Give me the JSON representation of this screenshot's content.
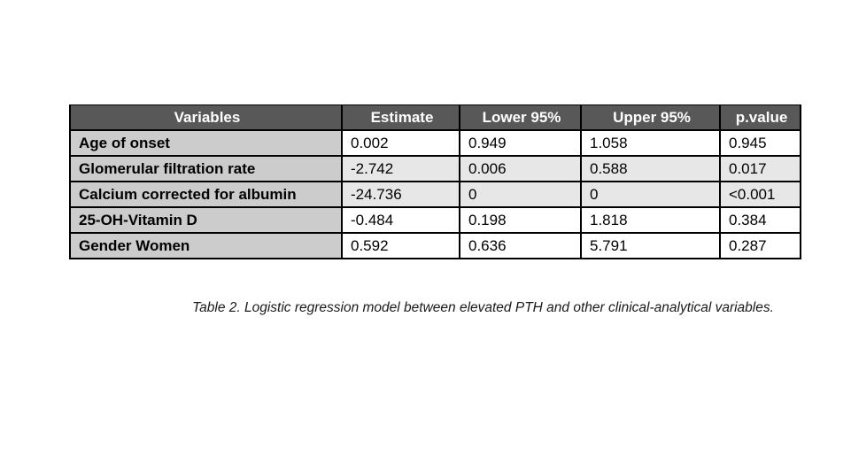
{
  "table": {
    "columns": [
      "Variables",
      "Estimate",
      "Lower 95%",
      "Upper 95%",
      "p.value"
    ],
    "rows": [
      [
        "Age of onset",
        "0.002",
        "0.949",
        "1.058",
        "0.945"
      ],
      [
        "Glomerular filtration rate",
        "-2.742",
        "0.006",
        "0.588",
        "0.017"
      ],
      [
        "Calcium corrected for albumin",
        "-24.736",
        "0",
        "0",
        "<0.001"
      ],
      [
        "25-OH-Vitamin D",
        "-0.484",
        "0.198",
        "1.818",
        "0.384"
      ],
      [
        "Gender Women",
        "0.592",
        "0.636",
        "5.791",
        "0.287"
      ]
    ]
  },
  "caption": "Table 2. Logistic regression model between elevated PTH and other clinical-analytical variables.",
  "colors": {
    "header_bg": "#585858",
    "header_text": "#ffffff",
    "variable_column_bg": "#cccccc",
    "shaded_row_bg": "#e7e7e7",
    "plain_row_bg": "#ffffff",
    "border": "#000000",
    "page_bg": "#ffffff"
  },
  "chart_data": {
    "type": "table",
    "title": "Table 2. Logistic regression model between elevated PTH and other clinical-analytical variables.",
    "columns": [
      "Variables",
      "Estimate",
      "Lower 95%",
      "Upper 95%",
      "p.value"
    ],
    "rows": [
      {
        "variable": "Age of onset",
        "estimate": 0.002,
        "lower_95": 0.949,
        "upper_95": 1.058,
        "p_value": "0.945"
      },
      {
        "variable": "Glomerular filtration rate",
        "estimate": -2.742,
        "lower_95": 0.006,
        "upper_95": 0.588,
        "p_value": "0.017"
      },
      {
        "variable": "Calcium corrected for albumin",
        "estimate": -24.736,
        "lower_95": 0,
        "upper_95": 0,
        "p_value": "<0.001"
      },
      {
        "variable": "25-OH-Vitamin D",
        "estimate": -0.484,
        "lower_95": 0.198,
        "upper_95": 1.818,
        "p_value": "0.384"
      },
      {
        "variable": "Gender Women",
        "estimate": 0.592,
        "lower_95": 0.636,
        "upper_95": 5.791,
        "p_value": "0.287"
      }
    ]
  }
}
